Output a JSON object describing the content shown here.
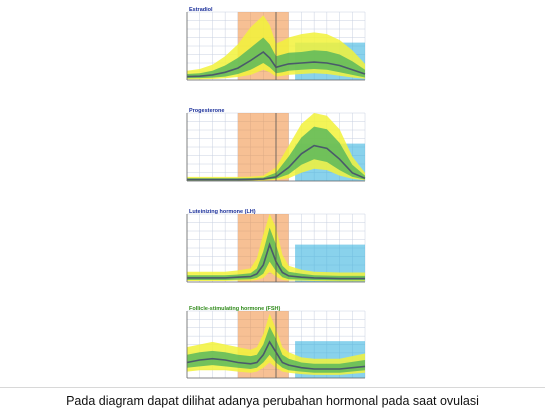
{
  "caption": "Pada diagram dapat dilihat adanya perubahan hormonal pada saat ovulasi",
  "colors": {
    "range_green": "#5cb85c",
    "range_yellow": "#f2f23a",
    "follicular_orange": "#f08c3c",
    "luteal_cyan": "#3ab4e0",
    "average_line": "#4a5a6a",
    "grid": "#c8d0e0",
    "title_blue": "#1a2f9a",
    "title_green": "#2f8a1a"
  },
  "chart_data": [
    {
      "type": "area",
      "title": "Estradiol",
      "title_color": "blue",
      "x": [
        0,
        2,
        4,
        6,
        8,
        10,
        12,
        13,
        14,
        15,
        16,
        18,
        20,
        22,
        24,
        26,
        28
      ],
      "series": [
        {
          "role": "average",
          "values": [
            40,
            45,
            60,
            90,
            140,
            230,
            330,
            260,
            150,
            170,
            190,
            200,
            210,
            200,
            170,
            120,
            70
          ]
        },
        {
          "role": "inner",
          "low": [
            20,
            22,
            28,
            40,
            70,
            120,
            200,
            150,
            80,
            90,
            110,
            120,
            130,
            120,
            90,
            60,
            30
          ],
          "high": [
            70,
            80,
            110,
            170,
            260,
            380,
            500,
            420,
            280,
            300,
            320,
            330,
            350,
            340,
            300,
            220,
            120
          ]
        },
        {
          "role": "outer",
          "low": [
            10,
            10,
            12,
            20,
            35,
            60,
            120,
            90,
            40,
            50,
            60,
            70,
            80,
            70,
            50,
            30,
            15
          ],
          "high": [
            110,
            130,
            180,
            280,
            420,
            620,
            760,
            650,
            430,
            460,
            500,
            540,
            560,
            540,
            470,
            350,
            190
          ]
        }
      ],
      "ylim": [
        0,
        800
      ]
    },
    {
      "type": "area",
      "title": "Progesterone",
      "title_color": "blue",
      "x": [
        0,
        2,
        4,
        6,
        8,
        10,
        12,
        14,
        16,
        18,
        20,
        22,
        24,
        26,
        28
      ],
      "series": [
        {
          "role": "average",
          "values": [
            0.5,
            0.5,
            0.5,
            0.5,
            0.5,
            0.6,
            0.7,
            1.5,
            5,
            10,
            13,
            12,
            8,
            3,
            1
          ]
        },
        {
          "role": "inner",
          "low": [
            0.2,
            0.2,
            0.2,
            0.2,
            0.2,
            0.3,
            0.4,
            0.8,
            2.5,
            6,
            8,
            7,
            4,
            1.5,
            0.5
          ],
          "high": [
            1,
            1,
            1,
            1,
            1,
            1.1,
            1.3,
            3,
            9,
            16,
            20,
            19,
            14,
            6,
            2
          ]
        },
        {
          "role": "outer",
          "low": [
            0.1,
            0.1,
            0.1,
            0.1,
            0.1,
            0.1,
            0.2,
            0.4,
            1,
            3,
            4.5,
            4,
            2,
            0.8,
            0.3
          ],
          "high": [
            1.5,
            1.5,
            1.5,
            1.5,
            1.5,
            1.6,
            2,
            5,
            13,
            21,
            25,
            24,
            19,
            9,
            3
          ]
        }
      ],
      "ylim": [
        0,
        25
      ]
    },
    {
      "type": "area",
      "title": "Luteinizing hormone (LH)",
      "title_color": "blue",
      "x": [
        0,
        2,
        4,
        6,
        8,
        10,
        11,
        12,
        13,
        14,
        15,
        16,
        18,
        20,
        24,
        28
      ],
      "series": [
        {
          "role": "average",
          "values": [
            6,
            6,
            6,
            6,
            7,
            8,
            12,
            25,
            55,
            30,
            14,
            9,
            7,
            6,
            5,
            5
          ]
        },
        {
          "role": "inner",
          "low": [
            3,
            3,
            3,
            3,
            3.5,
            4,
            6,
            12,
            30,
            16,
            7,
            4,
            3.5,
            3,
            2.5,
            2.5
          ],
          "high": [
            10,
            10,
            10,
            10,
            11,
            13,
            20,
            45,
            80,
            55,
            24,
            15,
            12,
            10,
            9,
            9
          ]
        },
        {
          "role": "outer",
          "low": [
            1.5,
            1.5,
            1.5,
            1.5,
            2,
            2,
            3,
            6,
            15,
            8,
            3,
            2,
            2,
            1.5,
            1,
            1
          ],
          "high": [
            15,
            15,
            15,
            15,
            17,
            20,
            35,
            70,
            100,
            80,
            40,
            24,
            18,
            15,
            14,
            14
          ]
        }
      ],
      "ylim": [
        0,
        100
      ]
    },
    {
      "type": "area",
      "title": "Follicle-stimulating hormone (FSH)",
      "title_color": "green",
      "x": [
        0,
        2,
        4,
        6,
        8,
        10,
        11,
        12,
        13,
        14,
        15,
        16,
        18,
        20,
        24,
        28
      ],
      "series": [
        {
          "role": "average",
          "values": [
            6,
            7,
            7.5,
            7,
            6,
            5.5,
            6,
            9,
            14,
            10,
            6,
            5,
            4,
            3.5,
            3.5,
            4.5
          ]
        },
        {
          "role": "inner",
          "low": [
            4,
            4.5,
            5,
            4.5,
            4,
            3.5,
            4,
            6,
            9,
            6,
            4,
            3,
            2.5,
            2,
            2,
            3
          ],
          "high": [
            9,
            10,
            10.5,
            10,
            9,
            8.5,
            9,
            13,
            20,
            15,
            9,
            7.5,
            6,
            5.5,
            5.5,
            7
          ]
        },
        {
          "role": "outer",
          "low": [
            2.5,
            3,
            3,
            3,
            2.5,
            2,
            2.5,
            4,
            6,
            4,
            2.5,
            2,
            1.5,
            1.2,
            1.2,
            2
          ],
          "high": [
            12,
            13,
            14,
            13,
            12,
            11,
            12,
            17,
            25,
            19,
            12,
            10,
            8,
            7.5,
            7.5,
            9.5
          ]
        }
      ],
      "ylim": [
        0,
        26
      ]
    }
  ]
}
